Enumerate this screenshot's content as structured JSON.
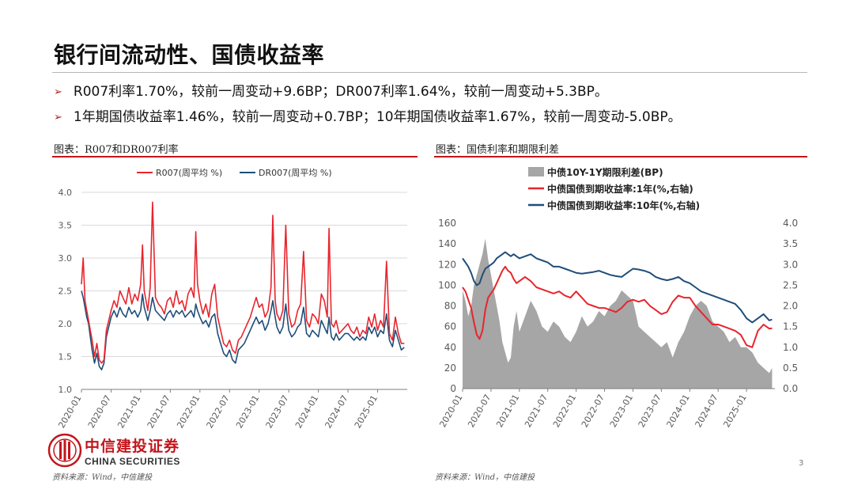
{
  "slide": {
    "title": "银行间流动性、国债收益率",
    "bullets": [
      "R007利率1.70%，较前一周变动+9.6BP；DR007利率1.64%，较前一周变动+5.3BP。",
      "1年期国债收益率1.46%，较前一周变动+0.7BP；10年期国债收益率1.67%，较前一周变动-5.0BP。"
    ],
    "bullet_marker": "➢",
    "page_number": "3"
  },
  "brand": {
    "name_cn": "中信建投证券",
    "name_en": "CHINA SECURITIES",
    "logo_icon": "china-securities-logo-icon",
    "red": "#c2161c"
  },
  "charts": [
    {
      "caption": "图表：R007和DR007利率",
      "source": "资料来源：Wind，中信建投"
    },
    {
      "caption": "图表：国债利率和期限利差",
      "source": "资料来源：Wind，中信建投"
    }
  ],
  "chart_data": [
    {
      "type": "line",
      "x_ticks": [
        "2020-01",
        "2020-07",
        "2021-01",
        "2021-07",
        "2022-01",
        "2022-07",
        "2023-01",
        "2023-07",
        "2024-01",
        "2024-07",
        "2025-01"
      ],
      "ylim": [
        1.0,
        4.0
      ],
      "y_ticks": [
        "1.0",
        "1.5",
        "2.0",
        "2.5",
        "3.0",
        "3.5",
        "4.0"
      ],
      "grid": true,
      "legend_position": "top",
      "series": [
        {
          "name": "R007(周平均 %)",
          "color": "#e8252d",
          "x": [
            2020.0,
            2020.03,
            2020.06,
            2020.09,
            2020.12,
            2020.15,
            2020.18,
            2020.22,
            2020.26,
            2020.3,
            2020.34,
            2020.38,
            2020.42,
            2020.46,
            2020.5,
            2020.55,
            2020.6,
            2020.65,
            2020.7,
            2020.75,
            2020.8,
            2020.85,
            2020.9,
            2020.95,
            2021.0,
            2021.03,
            2021.06,
            2021.09,
            2021.12,
            2021.16,
            2021.2,
            2021.25,
            2021.3,
            2021.35,
            2021.4,
            2021.45,
            2021.5,
            2021.55,
            2021.6,
            2021.65,
            2021.7,
            2021.75,
            2021.8,
            2021.85,
            2021.9,
            2021.93,
            2021.96,
            2022.0,
            2022.05,
            2022.1,
            2022.15,
            2022.2,
            2022.25,
            2022.3,
            2022.35,
            2022.4,
            2022.45,
            2022.5,
            2022.55,
            2022.6,
            2022.65,
            2022.7,
            2022.75,
            2022.8,
            2022.85,
            2022.9,
            2022.95,
            2023.0,
            2023.05,
            2023.1,
            2023.15,
            2023.2,
            2023.23,
            2023.27,
            2023.3,
            2023.35,
            2023.4,
            2023.45,
            2023.5,
            2023.55,
            2023.6,
            2023.65,
            2023.7,
            2023.75,
            2023.8,
            2023.85,
            2023.9,
            2023.95,
            2024.0,
            2024.05,
            2024.1,
            2024.15,
            2024.18,
            2024.22,
            2024.26,
            2024.3,
            2024.35,
            2024.4,
            2024.45,
            2024.5,
            2024.55,
            2024.6,
            2024.65,
            2024.7,
            2024.75,
            2024.8,
            2024.85,
            2024.9,
            2024.95,
            2025.0,
            2025.05,
            2025.1,
            2025.15,
            2025.2,
            2025.25,
            2025.3,
            2025.35,
            2025.4,
            2025.45
          ],
          "y": [
            2.6,
            3.0,
            2.35,
            2.2,
            2.05,
            1.9,
            1.75,
            1.5,
            1.7,
            1.45,
            1.4,
            1.45,
            1.9,
            2.05,
            2.2,
            2.35,
            2.25,
            2.5,
            2.4,
            2.3,
            2.55,
            2.3,
            2.45,
            2.35,
            2.6,
            3.2,
            2.5,
            2.35,
            2.2,
            2.55,
            3.85,
            2.4,
            2.3,
            2.25,
            2.15,
            2.35,
            2.4,
            2.25,
            2.5,
            2.3,
            2.35,
            2.2,
            2.45,
            2.55,
            2.4,
            3.4,
            2.6,
            2.35,
            2.15,
            2.3,
            2.1,
            2.45,
            2.6,
            2.1,
            1.9,
            1.7,
            1.65,
            1.75,
            1.6,
            1.55,
            1.75,
            1.8,
            1.9,
            2.0,
            2.1,
            2.25,
            2.4,
            2.25,
            2.3,
            2.1,
            2.2,
            2.55,
            3.65,
            2.35,
            2.15,
            2.05,
            2.2,
            3.5,
            2.15,
            1.95,
            2.0,
            2.2,
            2.3,
            3.1,
            2.05,
            1.95,
            2.15,
            2.1,
            2.0,
            2.45,
            2.35,
            2.1,
            3.45,
            2.0,
            1.95,
            2.05,
            1.85,
            1.9,
            1.95,
            2.0,
            1.9,
            1.85,
            1.95,
            1.8,
            1.9,
            1.85,
            2.1,
            1.95,
            2.15,
            1.9,
            2.05,
            1.95,
            2.95,
            1.85,
            1.75,
            2.1,
            1.85,
            1.7,
            1.7
          ]
        },
        {
          "name": "DR007(周平均 %)",
          "color": "#1f4e79",
          "x": [
            2020.0,
            2020.03,
            2020.06,
            2020.09,
            2020.12,
            2020.15,
            2020.18,
            2020.22,
            2020.26,
            2020.3,
            2020.34,
            2020.38,
            2020.42,
            2020.46,
            2020.5,
            2020.55,
            2020.6,
            2020.65,
            2020.7,
            2020.75,
            2020.8,
            2020.85,
            2020.9,
            2020.95,
            2021.0,
            2021.03,
            2021.06,
            2021.09,
            2021.12,
            2021.16,
            2021.2,
            2021.25,
            2021.3,
            2021.35,
            2021.4,
            2021.45,
            2021.5,
            2021.55,
            2021.6,
            2021.65,
            2021.7,
            2021.75,
            2021.8,
            2021.85,
            2021.9,
            2021.93,
            2021.96,
            2022.0,
            2022.05,
            2022.1,
            2022.15,
            2022.2,
            2022.25,
            2022.3,
            2022.35,
            2022.4,
            2022.45,
            2022.5,
            2022.55,
            2022.6,
            2022.65,
            2022.7,
            2022.75,
            2022.8,
            2022.85,
            2022.9,
            2022.95,
            2023.0,
            2023.05,
            2023.1,
            2023.15,
            2023.2,
            2023.23,
            2023.27,
            2023.3,
            2023.35,
            2023.4,
            2023.45,
            2023.5,
            2023.55,
            2023.6,
            2023.65,
            2023.7,
            2023.75,
            2023.8,
            2023.85,
            2023.9,
            2023.95,
            2024.0,
            2024.05,
            2024.1,
            2024.15,
            2024.18,
            2024.22,
            2024.26,
            2024.3,
            2024.35,
            2024.4,
            2024.45,
            2024.5,
            2024.55,
            2024.6,
            2024.65,
            2024.7,
            2024.75,
            2024.8,
            2024.85,
            2024.9,
            2024.95,
            2025.0,
            2025.05,
            2025.1,
            2025.15,
            2025.2,
            2025.25,
            2025.3,
            2025.35,
            2025.4,
            2025.45
          ],
          "y": [
            2.5,
            2.4,
            2.25,
            2.1,
            2.0,
            1.8,
            1.6,
            1.4,
            1.55,
            1.35,
            1.3,
            1.4,
            1.8,
            1.95,
            2.1,
            2.2,
            2.1,
            2.25,
            2.15,
            2.1,
            2.25,
            2.15,
            2.2,
            2.1,
            2.2,
            2.45,
            2.25,
            2.15,
            2.05,
            2.2,
            2.4,
            2.2,
            2.15,
            2.1,
            2.05,
            2.15,
            2.2,
            2.1,
            2.2,
            2.15,
            2.2,
            2.1,
            2.15,
            2.2,
            2.1,
            2.3,
            2.2,
            2.1,
            2.0,
            2.05,
            1.95,
            2.1,
            2.15,
            1.85,
            1.7,
            1.55,
            1.5,
            1.6,
            1.45,
            1.4,
            1.6,
            1.65,
            1.7,
            1.8,
            1.9,
            2.0,
            2.1,
            2.0,
            2.05,
            1.9,
            2.0,
            2.2,
            2.35,
            2.1,
            1.95,
            1.85,
            1.95,
            2.3,
            1.9,
            1.8,
            1.85,
            1.95,
            2.0,
            2.25,
            1.85,
            1.8,
            1.9,
            1.85,
            1.8,
            2.05,
            1.95,
            1.85,
            2.1,
            1.8,
            1.75,
            1.85,
            1.75,
            1.8,
            1.85,
            1.85,
            1.8,
            1.75,
            1.8,
            1.75,
            1.8,
            1.75,
            1.95,
            1.85,
            1.95,
            1.8,
            1.9,
            1.85,
            2.15,
            1.75,
            1.65,
            1.9,
            1.75,
            1.6,
            1.64
          ]
        }
      ]
    },
    {
      "type": "area",
      "x_ticks": [
        "2020-01",
        "2020-07",
        "2021-01",
        "2021-07",
        "2022-01",
        "2022-07",
        "2023-01",
        "2023-07",
        "2024-01",
        "2024-07",
        "2025-01"
      ],
      "ylim": [
        0,
        160
      ],
      "y_ticks": [
        "0",
        "20",
        "40",
        "60",
        "80",
        "100",
        "120",
        "140",
        "160"
      ],
      "y2lim": [
        0.0,
        4.0
      ],
      "y2_ticks": [
        "0.0",
        "0.5",
        "1.0",
        "1.5",
        "2.0",
        "2.5",
        "3.0",
        "3.5",
        "4.0"
      ],
      "grid": false,
      "legend_position": "top",
      "series": [
        {
          "name": "中债10Y-1Y期限利差(BP)",
          "color": "#a6a6a6",
          "axis": "left",
          "x": [
            2020.0,
            2020.05,
            2020.1,
            2020.15,
            2020.2,
            2020.25,
            2020.3,
            2020.35,
            2020.4,
            2020.45,
            2020.5,
            2020.55,
            2020.6,
            2020.65,
            2020.7,
            2020.75,
            2020.8,
            2020.85,
            2020.9,
            2020.95,
            2021.0,
            2021.1,
            2021.2,
            2021.3,
            2021.4,
            2021.5,
            2021.6,
            2021.7,
            2021.8,
            2021.9,
            2022.0,
            2022.1,
            2022.2,
            2022.3,
            2022.4,
            2022.5,
            2022.6,
            2022.7,
            2022.8,
            2022.9,
            2023.0,
            2023.1,
            2023.2,
            2023.3,
            2023.4,
            2023.5,
            2023.6,
            2023.7,
            2023.8,
            2023.9,
            2024.0,
            2024.1,
            2024.2,
            2024.3,
            2024.4,
            2024.5,
            2024.6,
            2024.7,
            2024.8,
            2024.9,
            2025.0,
            2025.1,
            2025.2,
            2025.3,
            2025.4,
            2025.45
          ],
          "y": [
            95,
            85,
            70,
            80,
            100,
            110,
            120,
            130,
            145,
            125,
            110,
            95,
            80,
            65,
            45,
            35,
            25,
            30,
            60,
            75,
            55,
            70,
            85,
            75,
            60,
            55,
            65,
            60,
            50,
            45,
            55,
            70,
            60,
            65,
            75,
            70,
            80,
            85,
            95,
            90,
            85,
            60,
            55,
            50,
            45,
            40,
            45,
            30,
            45,
            55,
            70,
            80,
            85,
            80,
            65,
            60,
            55,
            45,
            50,
            40,
            40,
            35,
            25,
            20,
            15,
            20
          ]
        },
        {
          "name": "中债国债到期收益率:1年(%,右轴)",
          "color": "#e8252d",
          "axis": "right",
          "x": [
            2020.0,
            2020.05,
            2020.1,
            2020.15,
            2020.2,
            2020.25,
            2020.3,
            2020.35,
            2020.4,
            2020.45,
            2020.5,
            2020.55,
            2020.6,
            2020.65,
            2020.7,
            2020.75,
            2020.8,
            2020.85,
            2020.9,
            2020.95,
            2021.0,
            2021.1,
            2021.2,
            2021.3,
            2021.4,
            2021.5,
            2021.6,
            2021.7,
            2021.8,
            2021.9,
            2022.0,
            2022.1,
            2022.2,
            2022.3,
            2022.4,
            2022.5,
            2022.6,
            2022.7,
            2022.8,
            2022.9,
            2023.0,
            2023.1,
            2023.2,
            2023.3,
            2023.4,
            2023.5,
            2023.6,
            2023.7,
            2023.8,
            2023.9,
            2024.0,
            2024.1,
            2024.2,
            2024.3,
            2024.4,
            2024.5,
            2024.6,
            2024.7,
            2024.8,
            2024.9,
            2025.0,
            2025.1,
            2025.2,
            2025.3,
            2025.4,
            2025.45
          ],
          "y": [
            2.45,
            2.35,
            2.15,
            1.95,
            1.6,
            1.3,
            1.2,
            1.4,
            1.9,
            2.2,
            2.3,
            2.4,
            2.55,
            2.7,
            2.85,
            2.95,
            2.85,
            2.8,
            2.65,
            2.55,
            2.6,
            2.7,
            2.6,
            2.45,
            2.4,
            2.35,
            2.3,
            2.35,
            2.25,
            2.2,
            2.35,
            2.2,
            2.05,
            2.0,
            1.95,
            1.95,
            1.9,
            1.85,
            1.95,
            2.1,
            2.15,
            2.1,
            2.15,
            2.0,
            1.9,
            1.8,
            1.85,
            2.1,
            2.25,
            2.2,
            2.2,
            2.0,
            1.85,
            1.7,
            1.55,
            1.55,
            1.5,
            1.45,
            1.4,
            1.3,
            1.05,
            1.0,
            1.4,
            1.55,
            1.45,
            1.46
          ]
        },
        {
          "name": "中债国债到期收益率:10年(%,右轴)",
          "color": "#1f4e79",
          "axis": "right",
          "x": [
            2020.0,
            2020.05,
            2020.1,
            2020.15,
            2020.2,
            2020.25,
            2020.3,
            2020.35,
            2020.4,
            2020.45,
            2020.5,
            2020.55,
            2020.6,
            2020.65,
            2020.7,
            2020.75,
            2020.8,
            2020.85,
            2020.9,
            2020.95,
            2021.0,
            2021.1,
            2021.2,
            2021.3,
            2021.4,
            2021.5,
            2021.6,
            2021.7,
            2021.8,
            2021.9,
            2022.0,
            2022.1,
            2022.2,
            2022.3,
            2022.4,
            2022.5,
            2022.6,
            2022.7,
            2022.8,
            2022.9,
            2023.0,
            2023.1,
            2023.2,
            2023.3,
            2023.4,
            2023.5,
            2023.6,
            2023.7,
            2023.8,
            2023.9,
            2024.0,
            2024.1,
            2024.2,
            2024.3,
            2024.4,
            2024.5,
            2024.6,
            2024.7,
            2024.8,
            2024.9,
            2025.0,
            2025.1,
            2025.2,
            2025.3,
            2025.4,
            2025.45
          ],
          "y": [
            3.15,
            3.05,
            2.95,
            2.8,
            2.6,
            2.5,
            2.55,
            2.75,
            2.9,
            2.95,
            3.0,
            3.05,
            3.15,
            3.2,
            3.25,
            3.3,
            3.25,
            3.2,
            3.25,
            3.2,
            3.15,
            3.2,
            3.25,
            3.15,
            3.1,
            3.05,
            2.95,
            2.95,
            2.9,
            2.85,
            2.8,
            2.78,
            2.8,
            2.82,
            2.85,
            2.8,
            2.75,
            2.72,
            2.7,
            2.8,
            2.9,
            2.88,
            2.85,
            2.8,
            2.7,
            2.65,
            2.62,
            2.65,
            2.7,
            2.6,
            2.55,
            2.45,
            2.35,
            2.3,
            2.25,
            2.2,
            2.15,
            2.1,
            2.05,
            1.9,
            1.7,
            1.6,
            1.7,
            1.8,
            1.65,
            1.67
          ]
        }
      ]
    }
  ]
}
